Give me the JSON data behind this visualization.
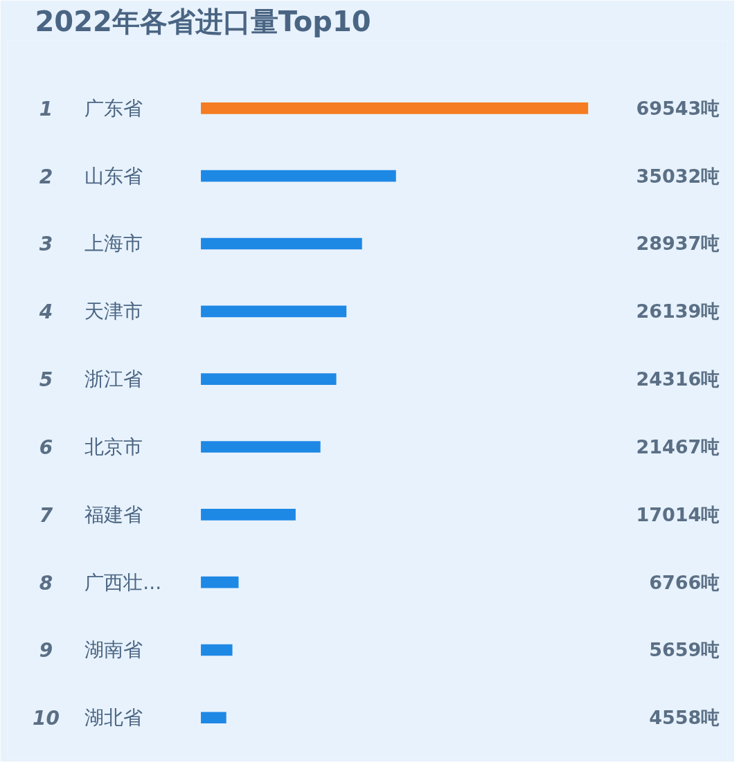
{
  "chart_data": {
    "type": "bar",
    "orientation": "horizontal",
    "title": "2022年各省进口量Top10",
    "categories": [
      "广东省",
      "山东省",
      "上海市",
      "天津市",
      "浙江省",
      "北京市",
      "福建省",
      "广西壮...",
      "湖南省",
      "湖北省"
    ],
    "values": [
      69543,
      35032,
      28937,
      26139,
      24316,
      21467,
      17014,
      6766,
      5659,
      4558
    ],
    "colors": [
      "#f57c22",
      "#1e88e5",
      "#1e88e5",
      "#1e88e5",
      "#1e88e5",
      "#1e88e5",
      "#1e88e5",
      "#1e88e5",
      "#1e88e5",
      "#1e88e5"
    ],
    "value_labels": [
      "69543吨",
      "35032吨",
      "28937吨",
      "26139吨",
      "24316吨",
      "21467吨",
      "17014吨",
      "6766吨",
      "5659吨",
      "4558吨"
    ],
    "annotations": [
      "1",
      "2",
      "3",
      "4",
      "5",
      "6",
      "7",
      "8",
      "9",
      "10"
    ]
  }
}
